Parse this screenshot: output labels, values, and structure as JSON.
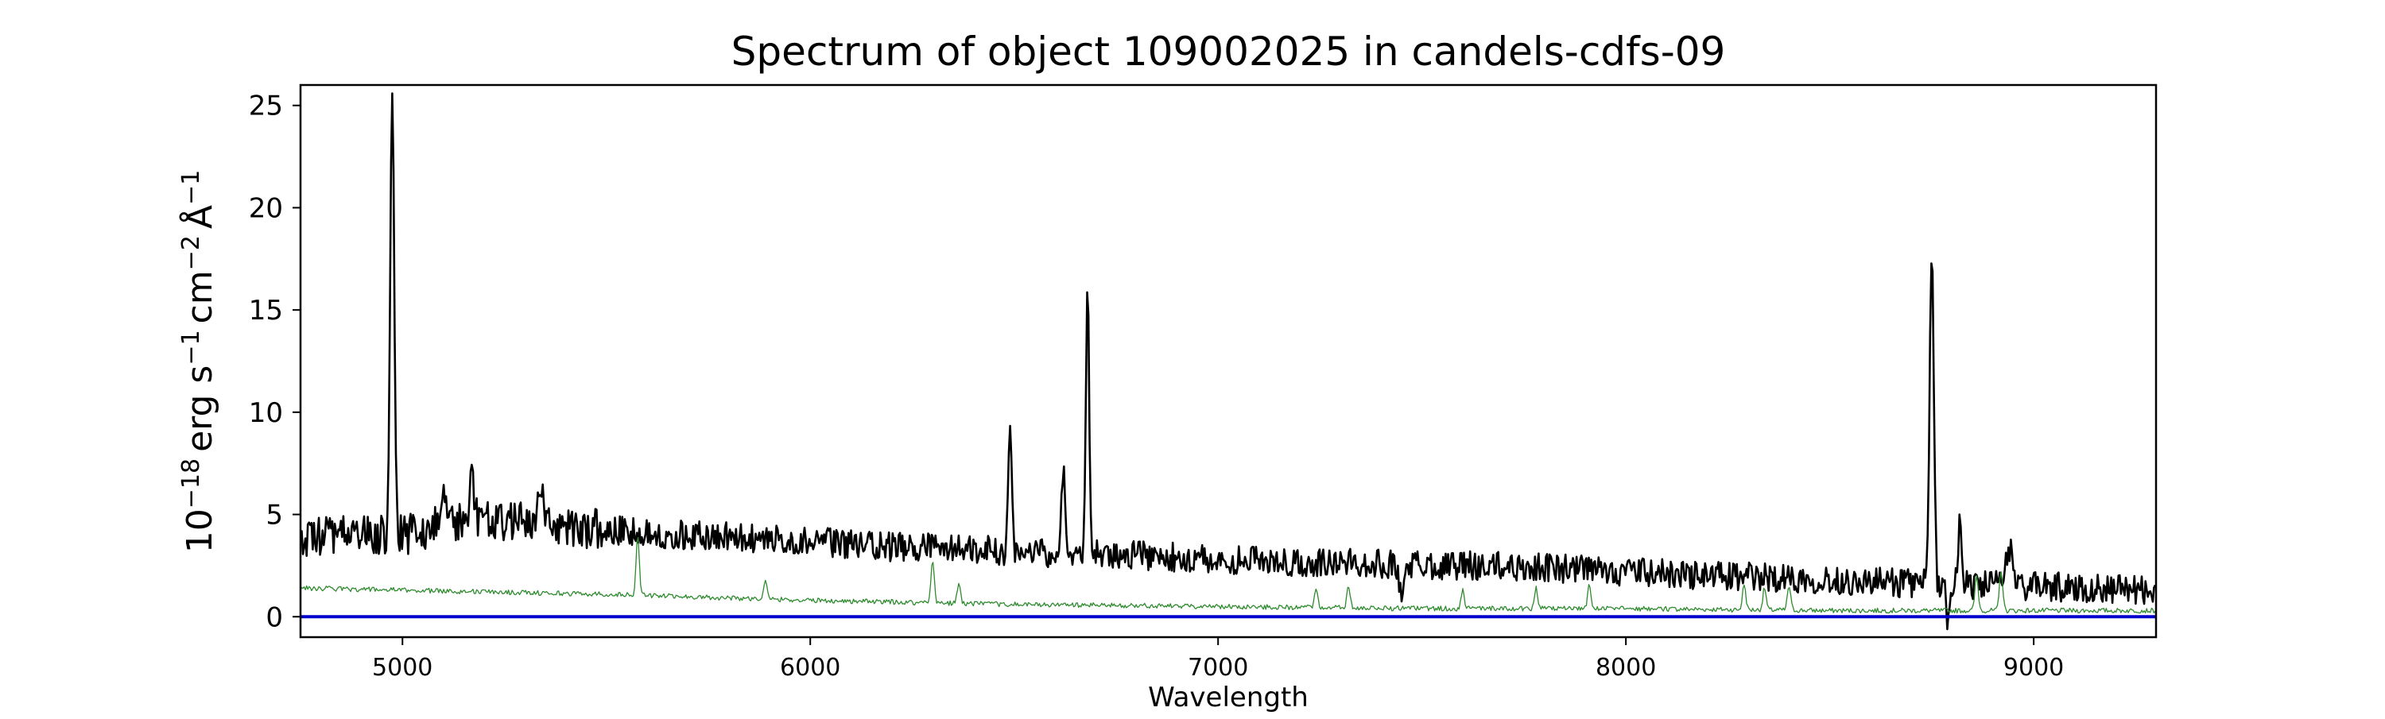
{
  "chart_data": {
    "type": "line",
    "title": "Spectrum of object 109002025 in candels-cdfs-09",
    "xlabel": "Wavelength",
    "ylabel": {
      "base": "10",
      "exp1": "−18",
      "erg": "erg s",
      "exp2": "−1",
      "cm": "cm",
      "exp3": "−2",
      "ang": "Å",
      "exp4": "−1"
    },
    "xlim": [
      4750,
      9300
    ],
    "ylim": [
      -1.0,
      26.0
    ],
    "xticks": [
      5000,
      6000,
      7000,
      8000,
      9000
    ],
    "xtick_labels": [
      "5000",
      "6000",
      "7000",
      "8000",
      "9000"
    ],
    "yticks": [
      0,
      5,
      10,
      15,
      20,
      25
    ],
    "ytick_labels": [
      "0",
      "5",
      "10",
      "15",
      "20",
      "25"
    ],
    "grid": false,
    "series": [
      {
        "role": "flux",
        "color": "#000000",
        "continuum": [
          [
            4750,
            3.9
          ],
          [
            5000,
            4.0
          ],
          [
            5200,
            4.8
          ],
          [
            5400,
            4.4
          ],
          [
            5600,
            4.1
          ],
          [
            5800,
            3.9
          ],
          [
            6000,
            3.7
          ],
          [
            6200,
            3.4
          ],
          [
            6400,
            3.3
          ],
          [
            6600,
            3.1
          ],
          [
            6800,
            3.0
          ],
          [
            7000,
            2.8
          ],
          [
            7200,
            2.7
          ],
          [
            7400,
            2.6
          ],
          [
            7600,
            2.5
          ],
          [
            7800,
            2.4
          ],
          [
            8000,
            2.2
          ],
          [
            8200,
            2.0
          ],
          [
            8400,
            1.9
          ],
          [
            8600,
            1.7
          ],
          [
            8800,
            1.6
          ],
          [
            9000,
            1.5
          ],
          [
            9300,
            1.3
          ]
        ],
        "lines": [
          [
            4975,
            24.8,
            5
          ],
          [
            5100,
            6.5,
            8
          ],
          [
            5170,
            6.8,
            6
          ],
          [
            5340,
            6.3,
            6
          ],
          [
            6490,
            9.1,
            4
          ],
          [
            6620,
            7.2,
            4
          ],
          [
            6680,
            16.3,
            4
          ],
          [
            7450,
            1.0,
            6
          ],
          [
            8750,
            17.6,
            5
          ],
          [
            8790,
            -0.2,
            4
          ],
          [
            8820,
            5.1,
            4
          ],
          [
            8940,
            3.4,
            8
          ]
        ]
      },
      {
        "role": "noise",
        "color": "#2e8b2e",
        "continuum": [
          [
            4750,
            1.4
          ],
          [
            5500,
            1.1
          ],
          [
            6000,
            0.8
          ],
          [
            6500,
            0.6
          ],
          [
            7000,
            0.5
          ],
          [
            7500,
            0.4
          ],
          [
            8000,
            0.4
          ],
          [
            8500,
            0.3
          ],
          [
            9300,
            0.3
          ]
        ],
        "lines": [
          [
            5577,
            3.9,
            4
          ],
          [
            5890,
            1.7,
            4
          ],
          [
            6300,
            2.8,
            4
          ],
          [
            6364,
            1.6,
            4
          ],
          [
            7240,
            1.3,
            4
          ],
          [
            7320,
            1.5,
            4
          ],
          [
            7600,
            1.3,
            4
          ],
          [
            7780,
            1.4,
            4
          ],
          [
            7910,
            1.5,
            4
          ],
          [
            8290,
            1.6,
            4
          ],
          [
            8340,
            1.4,
            4
          ],
          [
            8400,
            1.5,
            4
          ],
          [
            8860,
            2.0,
            4
          ],
          [
            8920,
            2.3,
            4
          ]
        ]
      },
      {
        "role": "zero",
        "color": "#0000cc",
        "values": [
          [
            4750,
            0.0
          ],
          [
            9300,
            0.0
          ]
        ]
      }
    ]
  }
}
